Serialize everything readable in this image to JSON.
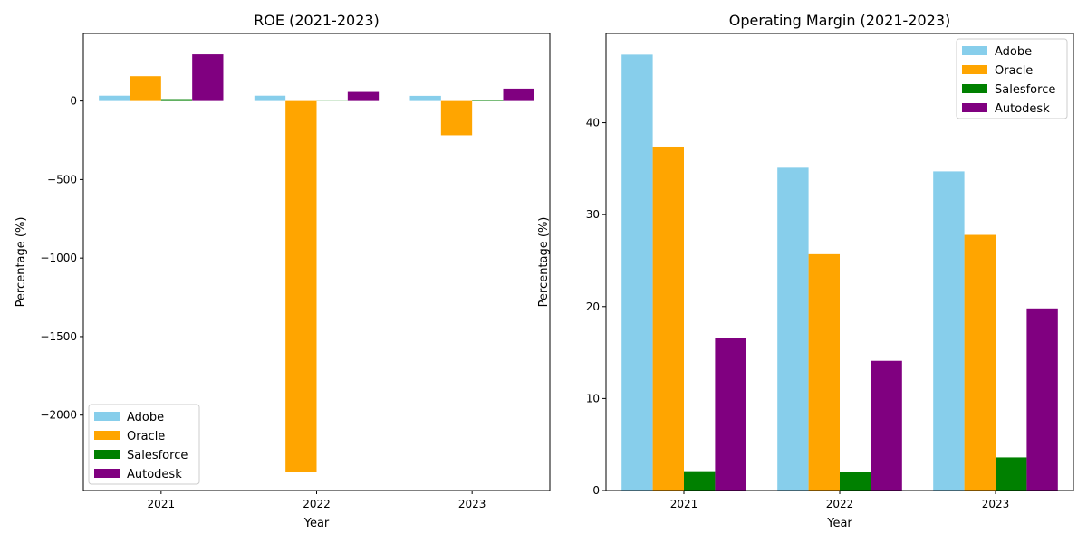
{
  "chart_data": [
    {
      "type": "bar",
      "title": "ROE (2021-2023)",
      "xlabel": "Year",
      "ylabel": "Percentage (%)",
      "categories": [
        "2021",
        "2022",
        "2023"
      ],
      "ylim": [
        -2480,
        430
      ],
      "yticks": [
        0,
        -500,
        -1000,
        -1500,
        -2000
      ],
      "ytick_labels": [
        "0",
        "−500",
        "−1000",
        "−1500",
        "−2000"
      ],
      "legend_position": "lower-left",
      "series": [
        {
          "name": "Adobe",
          "color": "#87ceeb",
          "values": [
            34,
            34,
            33
          ]
        },
        {
          "name": "Oracle",
          "color": "#ffa500",
          "values": [
            158,
            -2360,
            -218
          ]
        },
        {
          "name": "Salesforce",
          "color": "#008000",
          "values": [
            12,
            1,
            3
          ]
        },
        {
          "name": "Autodesk",
          "color": "#800080",
          "values": [
            297,
            58,
            79
          ]
        }
      ]
    },
    {
      "type": "bar",
      "title": "Operating Margin (2021-2023)",
      "xlabel": "Year",
      "ylabel": "Percentage (%)",
      "categories": [
        "2021",
        "2022",
        "2023"
      ],
      "ylim": [
        0,
        49.7
      ],
      "yticks": [
        0,
        10,
        20,
        30,
        40
      ],
      "ytick_labels": [
        "0",
        "10",
        "20",
        "30",
        "40"
      ],
      "legend_position": "upper-right",
      "series": [
        {
          "name": "Adobe",
          "color": "#87ceeb",
          "values": [
            47.4,
            35.1,
            34.7
          ]
        },
        {
          "name": "Oracle",
          "color": "#ffa500",
          "values": [
            37.4,
            25.7,
            27.8
          ]
        },
        {
          "name": "Salesforce",
          "color": "#008000",
          "values": [
            2.1,
            2.0,
            3.6
          ]
        },
        {
          "name": "Autodesk",
          "color": "#800080",
          "values": [
            16.6,
            14.1,
            19.8
          ]
        }
      ]
    }
  ]
}
